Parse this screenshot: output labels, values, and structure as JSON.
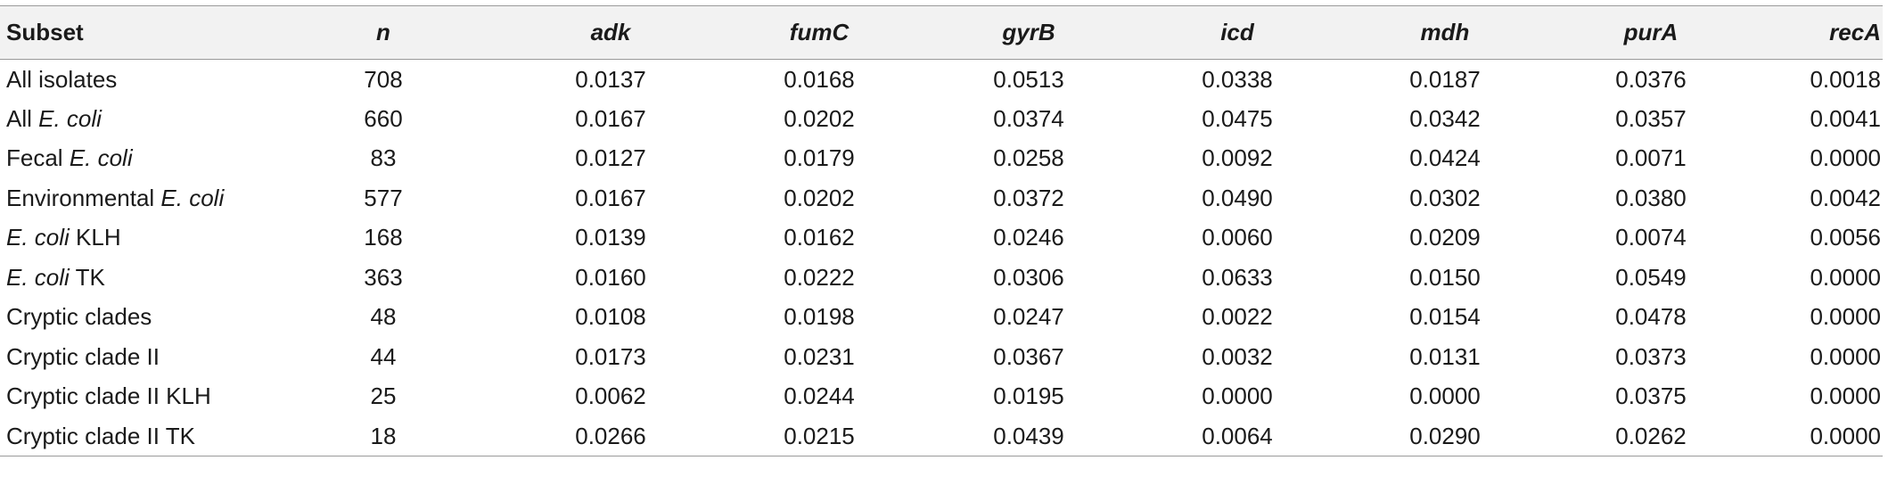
{
  "table": {
    "headers": [
      "Subset",
      "n",
      "adk",
      "fumC",
      "gyrB",
      "icd",
      "mdh",
      "purA",
      "recA"
    ],
    "rows": [
      {
        "subset": [
          {
            "t": "All isolates",
            "i": false
          }
        ],
        "values": [
          "708",
          "0.0137",
          "0.0168",
          "0.0513",
          "0.0338",
          "0.0187",
          "0.0376",
          "0.0018"
        ]
      },
      {
        "subset": [
          {
            "t": "All ",
            "i": false
          },
          {
            "t": "E. coli",
            "i": true
          }
        ],
        "values": [
          "660",
          "0.0167",
          "0.0202",
          "0.0374",
          "0.0475",
          "0.0342",
          "0.0357",
          "0.0041"
        ]
      },
      {
        "subset": [
          {
            "t": "Fecal ",
            "i": false
          },
          {
            "t": "E. coli",
            "i": true
          }
        ],
        "values": [
          "83",
          "0.0127",
          "0.0179",
          "0.0258",
          "0.0092",
          "0.0424",
          "0.0071",
          "0.0000"
        ]
      },
      {
        "subset": [
          {
            "t": "Environmental ",
            "i": false
          },
          {
            "t": "E. coli",
            "i": true
          }
        ],
        "values": [
          "577",
          "0.0167",
          "0.0202",
          "0.0372",
          "0.0490",
          "0.0302",
          "0.0380",
          "0.0042"
        ]
      },
      {
        "subset": [
          {
            "t": "E. coli",
            "i": true
          },
          {
            "t": " KLH",
            "i": false
          }
        ],
        "values": [
          "168",
          "0.0139",
          "0.0162",
          "0.0246",
          "0.0060",
          "0.0209",
          "0.0074",
          "0.0056"
        ]
      },
      {
        "subset": [
          {
            "t": "E. coli",
            "i": true
          },
          {
            "t": " TK",
            "i": false
          }
        ],
        "values": [
          "363",
          "0.0160",
          "0.0222",
          "0.0306",
          "0.0633",
          "0.0150",
          "0.0549",
          "0.0000"
        ]
      },
      {
        "subset": [
          {
            "t": "Cryptic clades",
            "i": false
          }
        ],
        "values": [
          "48",
          "0.0108",
          "0.0198",
          "0.0247",
          "0.0022",
          "0.0154",
          "0.0478",
          "0.0000"
        ]
      },
      {
        "subset": [
          {
            "t": "Cryptic clade II",
            "i": false
          }
        ],
        "values": [
          "44",
          "0.0173",
          "0.0231",
          "0.0367",
          "0.0032",
          "0.0131",
          "0.0373",
          "0.0000"
        ]
      },
      {
        "subset": [
          {
            "t": "Cryptic clade II KLH",
            "i": false
          }
        ],
        "values": [
          "25",
          "0.0062",
          "0.0244",
          "0.0195",
          "0.0000",
          "0.0000",
          "0.0375",
          "0.0000"
        ]
      },
      {
        "subset": [
          {
            "t": "Cryptic clade II TK",
            "i": false
          }
        ],
        "values": [
          "18",
          "0.0266",
          "0.0215",
          "0.0439",
          "0.0064",
          "0.0290",
          "0.0262",
          "0.0000"
        ]
      }
    ]
  }
}
